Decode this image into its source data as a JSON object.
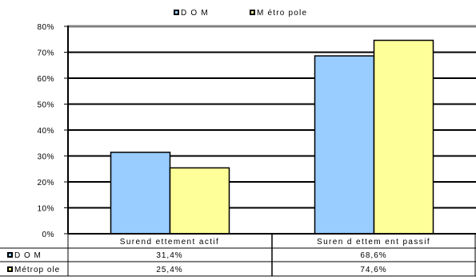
{
  "chart_data": {
    "type": "bar",
    "categories": [
      "Surend ettement actif",
      "Suren d ettem ent passif"
    ],
    "series": [
      {
        "name": "DOM",
        "values": [
          31.4,
          68.6
        ],
        "labels": [
          "31,4%",
          "68,6%"
        ],
        "color": "#99ccff"
      },
      {
        "name": "Métropole",
        "values": [
          25.4,
          74.6
        ],
        "labels": [
          "25,4%",
          "74,6%"
        ],
        "color": "#ffff99"
      }
    ],
    "legend": {
      "items": [
        "DOM",
        "Métropole"
      ],
      "labels": [
        "D O M",
        "M étro pole"
      ],
      "placement": "top"
    },
    "table_labels": [
      "D O M",
      "Métrop ole"
    ],
    "ylim": [
      0,
      80
    ],
    "yticks": [
      0,
      10,
      20,
      30,
      40,
      50,
      60,
      70,
      80
    ],
    "ytick_labels": [
      "0%",
      "10%",
      "20%",
      "30%",
      "40%",
      "50%",
      "60%",
      "70%",
      "80%"
    ],
    "grid": true,
    "data_table": true
  }
}
